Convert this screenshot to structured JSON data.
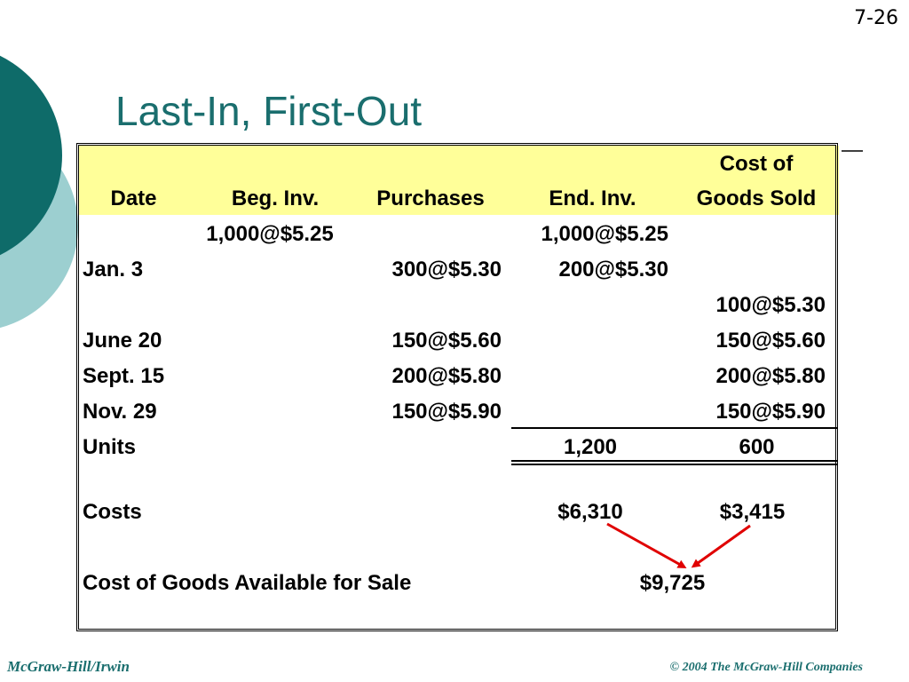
{
  "slide_number": "7-26",
  "title": "Last-In, First-Out",
  "table": {
    "headers": {
      "date": "Date",
      "beg_inv": "Beg. Inv.",
      "purchases": "Purchases",
      "end_inv": "End. Inv.",
      "cogs_line1": "Cost of",
      "cogs_line2": "Goods Sold"
    },
    "rows": [
      {
        "date": "",
        "beg_inv": "1,000@$5.25",
        "purchases": "",
        "end_inv": "1,000@$5.25",
        "cogs": ""
      },
      {
        "date": "Jan. 3",
        "beg_inv": "",
        "purchases": "300@$5.30",
        "end_inv": "200@$5.30",
        "cogs": ""
      },
      {
        "date": "",
        "beg_inv": "",
        "purchases": "",
        "end_inv": "",
        "cogs": "100@$5.30"
      },
      {
        "date": "June 20",
        "beg_inv": "",
        "purchases": "150@$5.60",
        "end_inv": "",
        "cogs": "150@$5.60"
      },
      {
        "date": "Sept. 15",
        "beg_inv": "",
        "purchases": "200@$5.80",
        "end_inv": "",
        "cogs": "200@$5.80"
      },
      {
        "date": "Nov. 29",
        "beg_inv": "",
        "purchases": "150@$5.90",
        "end_inv": "",
        "cogs": "150@$5.90"
      }
    ],
    "units": {
      "label": "Units",
      "end_inv": "1,200",
      "cogs": "600"
    },
    "costs": {
      "label": "Costs",
      "end_inv": "$6,310",
      "cogs": "$3,415"
    },
    "available": {
      "label": "Cost of Goods Available for Sale",
      "value": "$9,725"
    }
  },
  "colors": {
    "title": "#1a6e6e",
    "header_band": "#ffff99",
    "arrow": "#e00000",
    "circle_dark": "#0e6b69",
    "circle_light": "#9ccfd0"
  },
  "footer": {
    "left": "McGraw-Hill/Irwin",
    "right": "© 2004 The McGraw-Hill Companies"
  }
}
